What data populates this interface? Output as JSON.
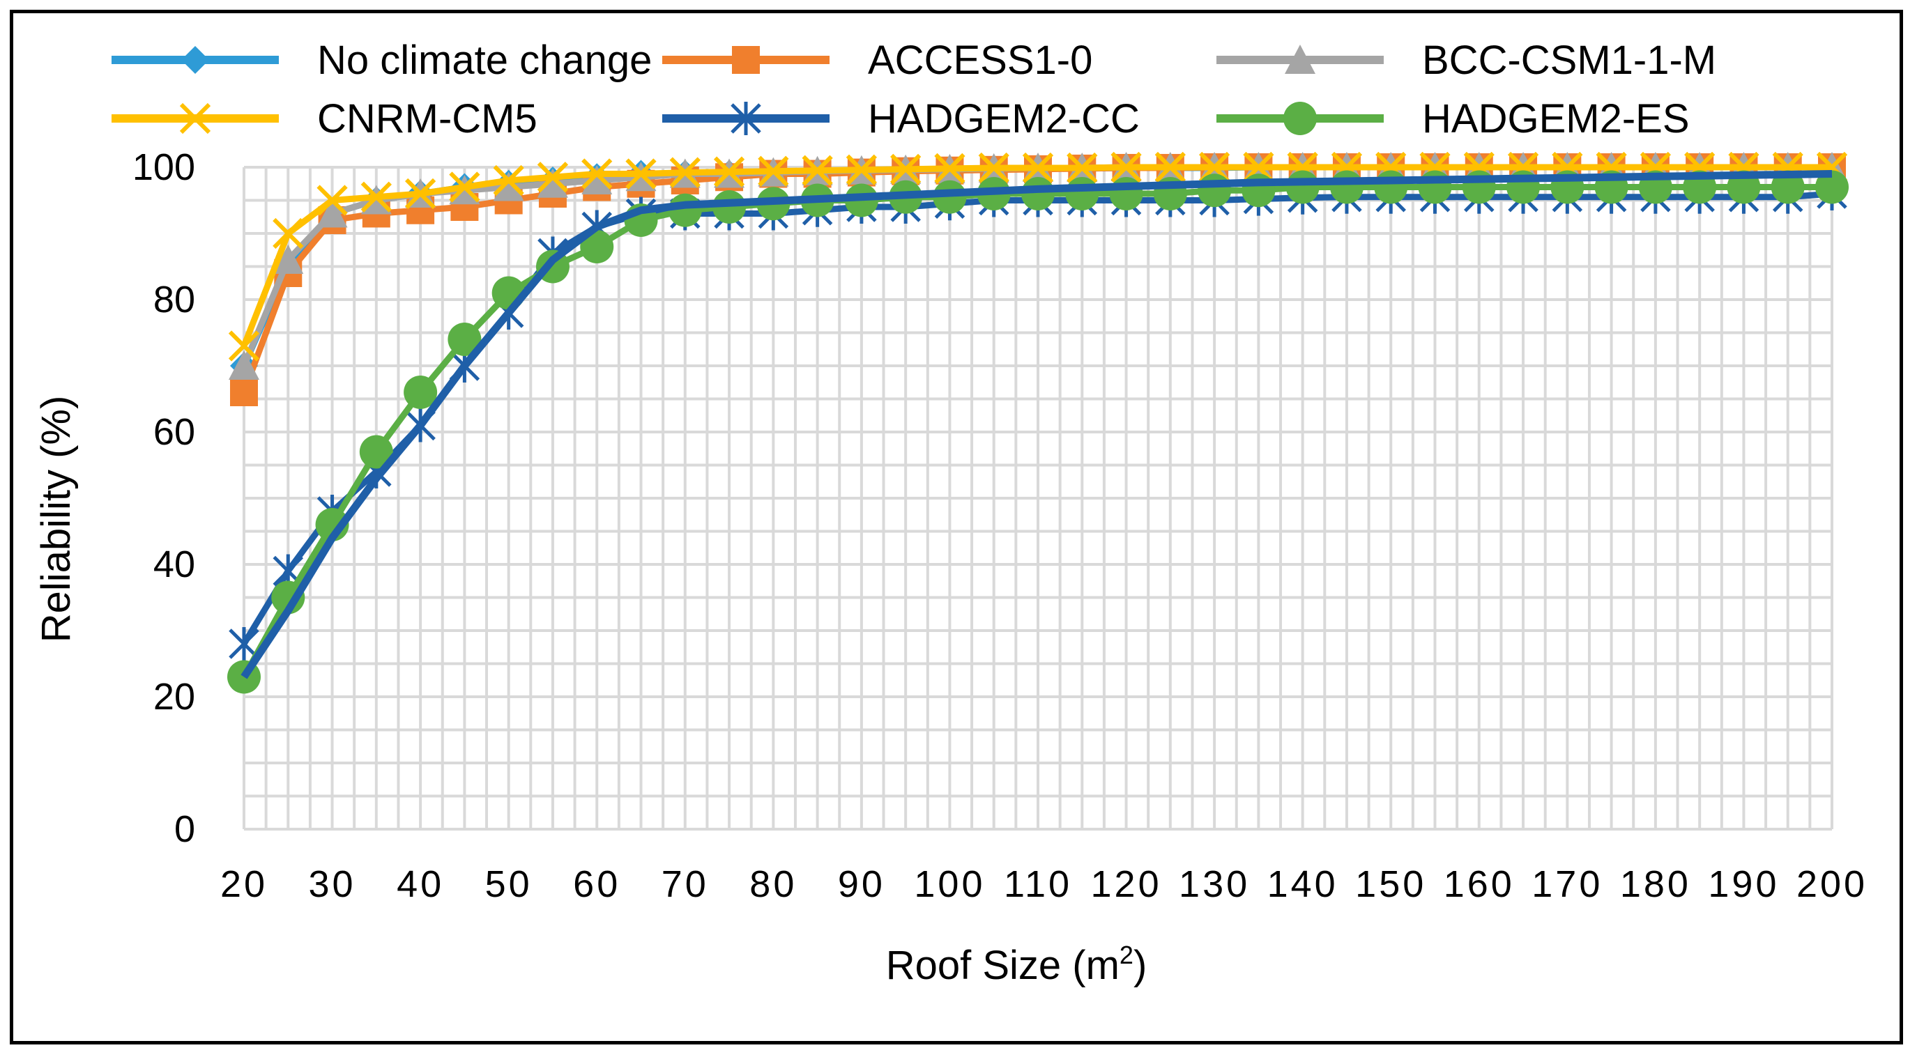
{
  "chart_data": {
    "type": "line",
    "title": "",
    "xlabel": "Roof Size (m",
    "xlabel_sup": "2",
    "xlabel_close": ")",
    "ylabel": "Reliability (%)",
    "ylim": [
      0,
      100
    ],
    "yticks": [
      0,
      20,
      40,
      60,
      80,
      100
    ],
    "x": [
      20,
      25,
      30,
      35,
      40,
      45,
      50,
      55,
      60,
      65,
      70,
      75,
      80,
      85,
      90,
      95,
      100,
      105,
      110,
      115,
      120,
      125,
      130,
      135,
      140,
      145,
      150,
      155,
      160,
      165,
      170,
      175,
      180,
      185,
      190,
      195,
      200
    ],
    "xtick_labels": [
      "20",
      "",
      "30",
      "",
      "40",
      "",
      "50",
      "",
      "60",
      "",
      "70",
      "",
      "80",
      "",
      "90",
      "",
      "100",
      "",
      "110",
      "",
      "120",
      "",
      "130",
      "",
      "140",
      "",
      "150",
      "",
      "160",
      "",
      "170",
      "",
      "180",
      "",
      "190",
      "",
      "200"
    ],
    "grid": true,
    "legend_position": "top",
    "series": [
      {
        "name": "No climate change",
        "color": "#2E9BD6",
        "marker": "diamond",
        "values": [
          70,
          85,
          93,
          95,
          96,
          97,
          97.5,
          98,
          98.5,
          99,
          99,
          99,
          99.2,
          99.3,
          99.4,
          99.5,
          99.6,
          99.7,
          99.8,
          99.8,
          99.9,
          99.9,
          99.9,
          100,
          100,
          100,
          100,
          100,
          100,
          100,
          100,
          100,
          100,
          100,
          100,
          100,
          100
        ]
      },
      {
        "name": "ACCESS1-0",
        "color": "#F07F2D",
        "marker": "square",
        "values": [
          66,
          84,
          92,
          93,
          93.5,
          94,
          95,
          96,
          97,
          97.5,
          98,
          98.5,
          99,
          99,
          99.2,
          99.4,
          99.5,
          99.6,
          99.7,
          99.8,
          99.9,
          99.9,
          100,
          100,
          100,
          100,
          100,
          100,
          100,
          100,
          100,
          100,
          100,
          100,
          100,
          100,
          100
        ]
      },
      {
        "name": "BCC-CSM1-1-M",
        "color": "#A5A5A5",
        "marker": "triangle",
        "values": [
          70,
          86,
          93,
          95,
          96,
          96.5,
          97,
          97.5,
          98,
          98.5,
          99,
          99,
          99.2,
          99.4,
          99.5,
          99.6,
          99.7,
          99.8,
          99.9,
          99.9,
          100,
          100,
          100,
          100,
          100,
          100,
          100,
          100,
          100,
          100,
          100,
          100,
          100,
          100,
          100,
          100,
          100
        ]
      },
      {
        "name": "CNRM-CM5",
        "color": "#FFC000",
        "marker": "x",
        "values": [
          73,
          90,
          95,
          95.5,
          96,
          97,
          98,
          98.5,
          99,
          99,
          99.2,
          99.3,
          99.4,
          99.5,
          99.6,
          99.7,
          99.8,
          99.9,
          99.9,
          99.9,
          100,
          100,
          100,
          100,
          100,
          100,
          100,
          100,
          100,
          100,
          100,
          100,
          100,
          100,
          100,
          100,
          100
        ]
      },
      {
        "name": "HADGEM2-CC",
        "color": "#1F5FA8",
        "marker": "asterisk",
        "values": [
          28,
          39,
          48,
          54,
          61,
          70,
          78,
          87,
          91,
          93,
          93,
          93,
          93,
          93.5,
          94,
          94,
          94.5,
          95,
          95,
          95,
          95,
          95,
          95,
          95.2,
          95.4,
          95.5,
          95.5,
          95.5,
          95.5,
          95.5,
          95.5,
          95.5,
          95.5,
          95.5,
          95.5,
          95.5,
          96
        ]
      },
      {
        "name": "HADGEM2-ES",
        "color": "#5BAF45",
        "marker": "circle",
        "values": [
          23,
          35,
          46,
          57,
          66,
          74,
          81,
          85,
          88,
          92,
          93.5,
          94,
          94.5,
          95,
          95,
          95.5,
          95.5,
          96,
          96,
          96,
          96,
          96,
          96.5,
          96.5,
          97,
          97,
          97,
          97,
          97,
          97,
          97,
          97,
          97,
          97,
          97,
          97,
          97
        ]
      }
    ],
    "trend_line": {
      "name": "",
      "color": "#1F5FA8",
      "values": [
        23,
        33,
        44,
        53,
        61,
        70,
        78,
        86,
        91,
        93.5,
        94.3,
        94.6,
        94.9,
        95.2,
        95.5,
        95.8,
        96.1,
        96.4,
        96.7,
        96.9,
        97.1,
        97.3,
        97.5,
        97.7,
        97.8,
        97.9,
        98.0,
        98.1,
        98.2,
        98.3,
        98.4,
        98.5,
        98.6,
        98.7,
        98.8,
        98.9,
        99
      ]
    }
  }
}
